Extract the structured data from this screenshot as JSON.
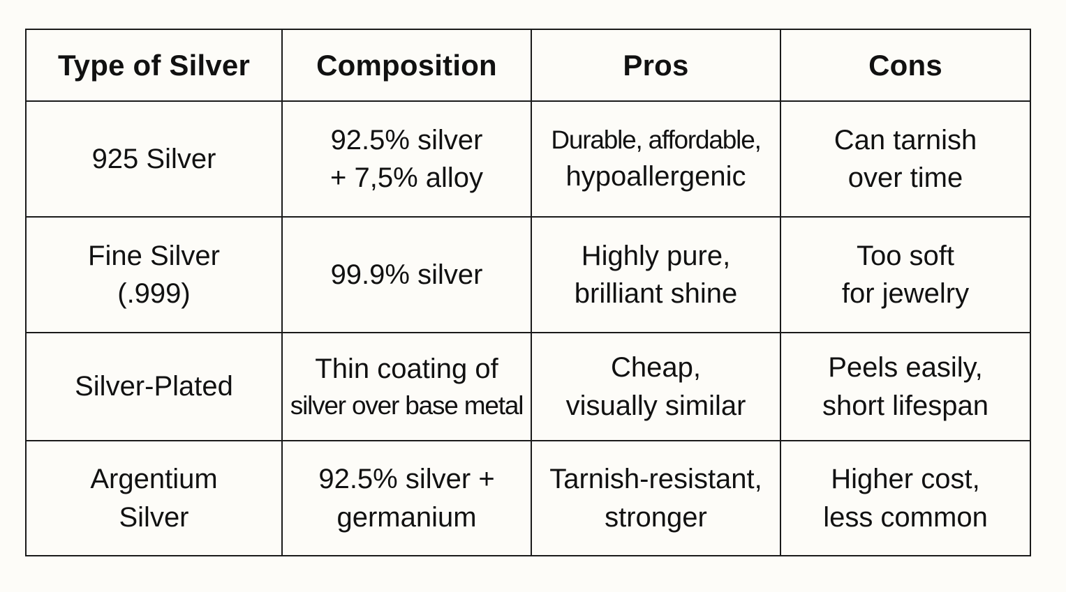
{
  "table": {
    "headers": [
      "Type of Silver",
      "Composition",
      "Pros",
      "Cons"
    ],
    "rows": [
      {
        "type": [
          "925 Silver"
        ],
        "composition": [
          "92.5% silver",
          "+ 7,5% alloy"
        ],
        "pros": [
          "Durable, affordable,",
          "hypoallergenic"
        ],
        "cons": [
          "Can tarnish",
          "over time"
        ]
      },
      {
        "type": [
          "Fine Silver",
          "(.999)"
        ],
        "composition": [
          "99.9% silver"
        ],
        "pros": [
          "Highly pure,",
          "brilliant shine"
        ],
        "cons": [
          "Too soft",
          "for jewelry"
        ]
      },
      {
        "type": [
          "Silver-Plated"
        ],
        "composition": [
          "Thin coating of",
          "silver over base metal"
        ],
        "pros": [
          "Cheap,",
          "visually similar"
        ],
        "cons": [
          "Peels easily,",
          "short lifespan"
        ]
      },
      {
        "type": [
          "Argentium",
          "Silver"
        ],
        "composition": [
          "92.5% silver +",
          "germanium"
        ],
        "pros": [
          "Tarnish-resistant,",
          "stronger"
        ],
        "cons": [
          "Higher cost,",
          "less common"
        ]
      }
    ]
  }
}
